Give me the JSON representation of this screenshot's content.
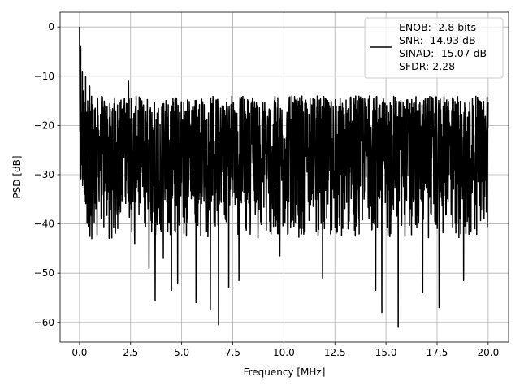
{
  "chart_data": {
    "type": "line",
    "title": "",
    "xlabel": "Frequency [MHz]",
    "ylabel": "PSD [dB]",
    "xlim": [
      -0.95,
      21.0
    ],
    "ylim": [
      -64.0,
      3.0
    ],
    "xticks": [
      0.0,
      2.5,
      5.0,
      7.5,
      10.0,
      12.5,
      15.0,
      17.5,
      20.0
    ],
    "xtick_labels": [
      "0.0",
      "2.5",
      "5.0",
      "7.5",
      "10.0",
      "12.5",
      "15.0",
      "17.5",
      "20.0"
    ],
    "yticks": [
      0,
      -10,
      -20,
      -30,
      -40,
      -50,
      -60
    ],
    "ytick_labels": [
      "0",
      "−10",
      "−20",
      "−30",
      "−40",
      "−50",
      "−60"
    ],
    "grid": true,
    "legend_position": "top-right",
    "legend_entries": [
      "ENOB: -2.8 bits",
      "SNR: -14.93 dB",
      "SINAD: -15.07 dB",
      "SFDR: 2.28"
    ],
    "series": [
      {
        "color": "#000000",
        "x_range": [
          0.0,
          20.0
        ],
        "noise_floor_range_db": [
          -36.0,
          -14.0
        ],
        "peak_points": [
          {
            "x": 0.0,
            "y": 0.0
          },
          {
            "x": 0.03,
            "y": -19.0
          },
          {
            "x": 0.06,
            "y": -4.0
          },
          {
            "x": 0.1,
            "y": -27.0
          },
          {
            "x": 0.14,
            "y": -9.0
          },
          {
            "x": 0.2,
            "y": -13.0
          },
          {
            "x": 0.3,
            "y": -10.0
          },
          {
            "x": 0.5,
            "y": -12.0
          },
          {
            "x": 2.4,
            "y": -11.0
          }
        ],
        "dip_points": [
          {
            "x": 0.6,
            "y": -43.0
          },
          {
            "x": 2.7,
            "y": -44.0
          },
          {
            "x": 3.4,
            "y": -49.0
          },
          {
            "x": 3.7,
            "y": -55.5
          },
          {
            "x": 4.1,
            "y": -47.0
          },
          {
            "x": 4.5,
            "y": -53.5
          },
          {
            "x": 4.8,
            "y": -52.0
          },
          {
            "x": 5.7,
            "y": -56.0
          },
          {
            "x": 6.4,
            "y": -57.5
          },
          {
            "x": 6.8,
            "y": -60.5
          },
          {
            "x": 7.3,
            "y": -53.0
          },
          {
            "x": 7.8,
            "y": -51.5
          },
          {
            "x": 9.8,
            "y": -46.5
          },
          {
            "x": 11.9,
            "y": -51.0
          },
          {
            "x": 14.5,
            "y": -53.5
          },
          {
            "x": 14.8,
            "y": -58.0
          },
          {
            "x": 15.6,
            "y": -61.0
          },
          {
            "x": 16.8,
            "y": -54.0
          },
          {
            "x": 17.6,
            "y": -57.0
          },
          {
            "x": 18.8,
            "y": -51.5
          }
        ]
      }
    ]
  }
}
